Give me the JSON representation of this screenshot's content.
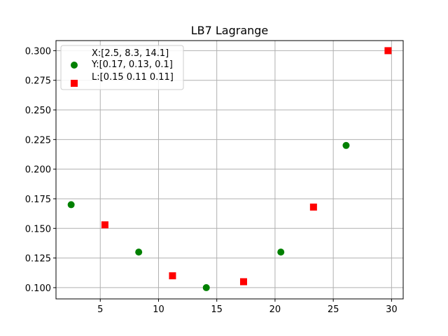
{
  "chart_data": {
    "type": "scatter",
    "title": "LB7 Lagrange",
    "xlabel": "",
    "ylabel": "",
    "xlim": [
      1.2,
      31.0
    ],
    "ylim": [
      0.0905,
      0.3085
    ],
    "xticks": [
      5,
      10,
      15,
      20,
      25,
      30
    ],
    "yticks": [
      0.1,
      0.125,
      0.15,
      0.175,
      0.2,
      0.225,
      0.25,
      0.275,
      0.3
    ],
    "ytick_labels": [
      "0.100",
      "0.125",
      "0.150",
      "0.175",
      "0.200",
      "0.225",
      "0.250",
      "0.275",
      "0.300"
    ],
    "grid": true,
    "legend_position": "top-left",
    "series": [
      {
        "name_lines": [
          "X:[2.5, 8.3, 14.1]",
          "Y:[0.17, 0.13, 0.1]"
        ],
        "marker": "circle",
        "color": "#008000",
        "x": [
          2.5,
          8.3,
          14.1,
          20.5,
          26.1
        ],
        "y": [
          0.17,
          0.13,
          0.1,
          0.13,
          0.22
        ]
      },
      {
        "name_lines": [
          "L:[0.15 0.11 0.11]"
        ],
        "marker": "square",
        "color": "#ff0000",
        "x": [
          5.4,
          11.2,
          17.3,
          23.3,
          29.7
        ],
        "y": [
          0.153,
          0.11,
          0.105,
          0.168,
          0.3
        ]
      }
    ]
  }
}
